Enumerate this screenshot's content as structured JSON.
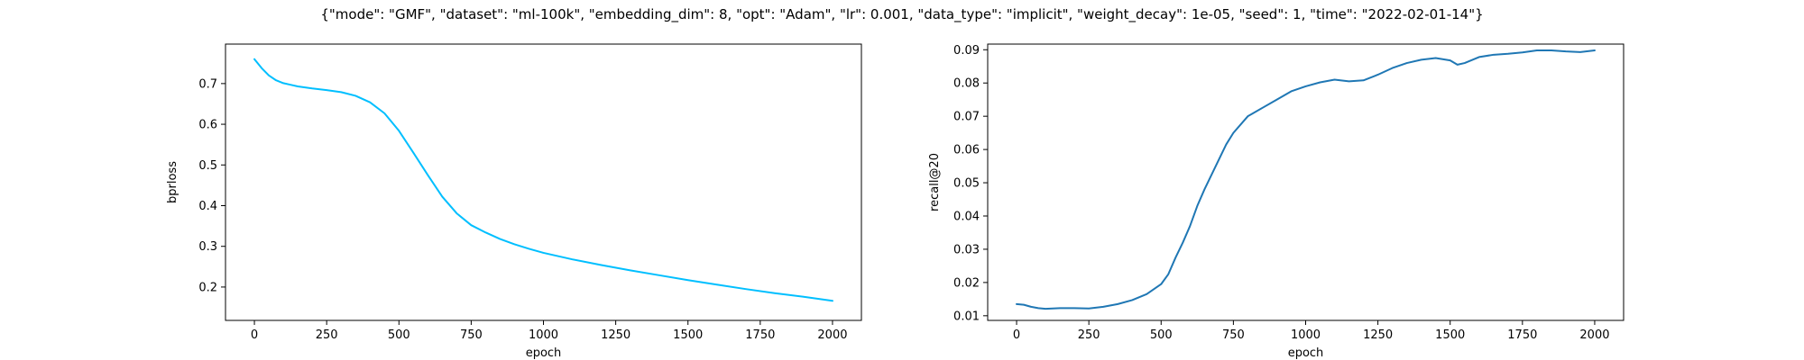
{
  "figure": {
    "suptitle": "{\"mode\": \"GMF\", \"dataset\": \"ml-100k\", \"embedding_dim\": 8, \"opt\": \"Adam\", \"lr\": 0.001, \"data_type\": \"implicit\", \"weight_decay\": 1e-05, \"seed\": 1, \"time\": \"2022-02-01-14\"}"
  },
  "chart_data": [
    {
      "type": "line",
      "title": "",
      "xlabel": "epoch",
      "ylabel": "bprloss",
      "xlim": [
        -100,
        2100
      ],
      "ylim": [
        0.118,
        0.797
      ],
      "xticks": [
        0,
        250,
        500,
        750,
        1000,
        1250,
        1500,
        1750,
        2000
      ],
      "yticks": [
        0.2,
        0.3,
        0.4,
        0.5,
        0.6,
        0.7
      ],
      "grid": false,
      "legend": "none",
      "series": [
        {
          "color": "#00bfff",
          "x": [
            0,
            25,
            50,
            75,
            100,
            125,
            150,
            200,
            250,
            300,
            350,
            400,
            450,
            500,
            550,
            600,
            650,
            700,
            750,
            800,
            850,
            900,
            950,
            1000,
            1100,
            1200,
            1300,
            1400,
            1500,
            1600,
            1700,
            1800,
            1900,
            2000
          ],
          "y": [
            0.76,
            0.738,
            0.72,
            0.708,
            0.701,
            0.697,
            0.693,
            0.688,
            0.684,
            0.679,
            0.67,
            0.654,
            0.627,
            0.584,
            0.53,
            0.475,
            0.422,
            0.381,
            0.352,
            0.334,
            0.318,
            0.305,
            0.294,
            0.284,
            0.268,
            0.254,
            0.241,
            0.229,
            0.217,
            0.206,
            0.195,
            0.185,
            0.176,
            0.166
          ]
        }
      ]
    },
    {
      "type": "line",
      "title": "",
      "xlabel": "epoch",
      "ylabel": "recall@20",
      "xlim": [
        -100,
        2100
      ],
      "ylim": [
        0.0086,
        0.0917
      ],
      "xticks": [
        0,
        250,
        500,
        750,
        1000,
        1250,
        1500,
        1750,
        2000
      ],
      "yticks": [
        0.01,
        0.02,
        0.03,
        0.04,
        0.05,
        0.06,
        0.07,
        0.08,
        0.09
      ],
      "grid": false,
      "legend": "none",
      "series": [
        {
          "color": "#1f77b4",
          "x": [
            0,
            25,
            50,
            75,
            100,
            150,
            200,
            250,
            300,
            350,
            400,
            450,
            500,
            525,
            550,
            575,
            600,
            625,
            650,
            675,
            700,
            725,
            750,
            800,
            850,
            900,
            950,
            1000,
            1050,
            1100,
            1150,
            1200,
            1250,
            1300,
            1350,
            1400,
            1450,
            1500,
            1525,
            1550,
            1600,
            1650,
            1700,
            1750,
            1800,
            1850,
            1900,
            1950,
            2000
          ],
          "y": [
            0.0135,
            0.0133,
            0.0127,
            0.0123,
            0.0121,
            0.0123,
            0.0123,
            0.0122,
            0.0127,
            0.0135,
            0.0147,
            0.0165,
            0.0195,
            0.0225,
            0.0275,
            0.032,
            0.037,
            0.043,
            0.048,
            0.0525,
            0.057,
            0.0615,
            0.065,
            0.07,
            0.0725,
            0.075,
            0.0775,
            0.079,
            0.0802,
            0.081,
            0.0805,
            0.0808,
            0.0825,
            0.0845,
            0.086,
            0.087,
            0.0875,
            0.0868,
            0.0855,
            0.086,
            0.0878,
            0.0885,
            0.0888,
            0.0892,
            0.0898,
            0.0898,
            0.0895,
            0.0893,
            0.0898
          ]
        }
      ]
    }
  ]
}
